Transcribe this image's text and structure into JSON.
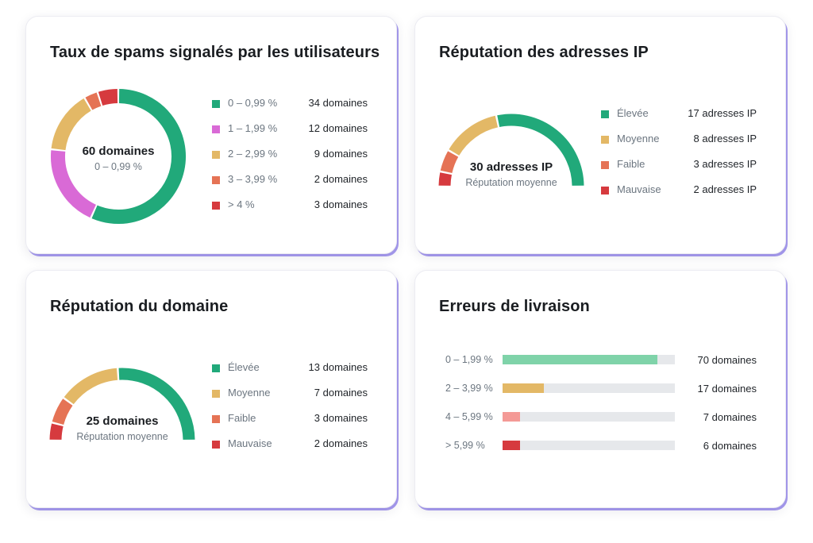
{
  "colors": {
    "green": "#21a97a",
    "pink": "#d96ad6",
    "yellow": "#e3b866",
    "orange": "#e57355",
    "red": "#d63a3e",
    "light_green": "#7fd3a9",
    "light_red": "#f49a96",
    "track": "#e6e8eb"
  },
  "spam": {
    "title": "Taux de spams signalés par les utilisateurs",
    "center_value": "60 domaines",
    "center_sub": "0 – 0,99 %",
    "legend": [
      {
        "label": "0 – 0,99 %",
        "count": "34 domaines",
        "color": "#21a97a"
      },
      {
        "label": "1 – 1,99 %",
        "count": "12 domaines",
        "color": "#d96ad6"
      },
      {
        "label": "2 – 2,99 %",
        "count": "9 domaines",
        "color": "#e3b866"
      },
      {
        "label": "3 – 3,99 %",
        "count": "2 domaines",
        "color": "#e57355"
      },
      {
        "label": "> 4 %",
        "count": "3 domaines",
        "color": "#d63a3e"
      }
    ]
  },
  "ip": {
    "title": "Réputation des adresses IP",
    "center_value": "30 adresses IP",
    "center_sub": "Réputation moyenne",
    "legend": [
      {
        "label": "Élevée",
        "count": "17 adresses IP",
        "color": "#21a97a"
      },
      {
        "label": "Moyenne",
        "count": "8 adresses IP",
        "color": "#e3b866"
      },
      {
        "label": "Faible",
        "count": "3 adresses IP",
        "color": "#e57355"
      },
      {
        "label": "Mauvaise",
        "count": "2 adresses IP",
        "color": "#d63a3e"
      }
    ]
  },
  "domain": {
    "title": "Réputation du domaine",
    "center_value": "25 domaines",
    "center_sub": "Réputation moyenne",
    "legend": [
      {
        "label": "Élevée",
        "count": "13 domaines",
        "color": "#21a97a"
      },
      {
        "label": "Moyenne",
        "count": "7 domaines",
        "color": "#e3b866"
      },
      {
        "label": "Faible",
        "count": "3 domaines",
        "color": "#e57355"
      },
      {
        "label": "Mauvaise",
        "count": "2 domaines",
        "color": "#d63a3e"
      }
    ]
  },
  "errors": {
    "title": "Erreurs de livraison",
    "rows": [
      {
        "label": "0 – 1,99 %",
        "count": "70 domaines",
        "fill_fraction": 0.9,
        "color": "#7fd3a9"
      },
      {
        "label": "2 – 3,99 %",
        "count": "17 domaines",
        "fill_fraction": 0.24,
        "color": "#e3b866"
      },
      {
        "label": "4 – 5,99 %",
        "count": "7 domaines",
        "fill_fraction": 0.1,
        "color": "#f49a96"
      },
      {
        "label": "> 5,99 %",
        "count": "6 domaines",
        "fill_fraction": 0.1,
        "color": "#d63a3e"
      }
    ]
  },
  "chart_data": [
    {
      "type": "pie",
      "variant": "donut",
      "title": "Taux de spams signalés par les utilisateurs",
      "categories": [
        "0 – 0,99 %",
        "1 – 1,99 %",
        "2 – 2,99 %",
        "3 – 3,99 %",
        "> 4 %"
      ],
      "values": [
        34,
        12,
        9,
        2,
        3
      ],
      "total_label": "60 domaines",
      "legend": "right"
    },
    {
      "type": "pie",
      "variant": "half-donut",
      "title": "Réputation des adresses IP",
      "categories": [
        "Élevée",
        "Moyenne",
        "Faible",
        "Mauvaise"
      ],
      "values": [
        17,
        8,
        3,
        2
      ],
      "total_label": "30 adresses IP",
      "legend": "right"
    },
    {
      "type": "pie",
      "variant": "half-donut",
      "title": "Réputation du domaine",
      "categories": [
        "Élevée",
        "Moyenne",
        "Faible",
        "Mauvaise"
      ],
      "values": [
        13,
        7,
        3,
        2
      ],
      "total_label": "25 domaines",
      "legend": "right"
    },
    {
      "type": "bar",
      "orientation": "horizontal",
      "title": "Erreurs de livraison",
      "categories": [
        "0 – 1,99 %",
        "2 – 3,99 %",
        "4 – 5,99 %",
        "> 5,99 %"
      ],
      "values": [
        70,
        17,
        7,
        6
      ],
      "unit": "domaines"
    }
  ]
}
